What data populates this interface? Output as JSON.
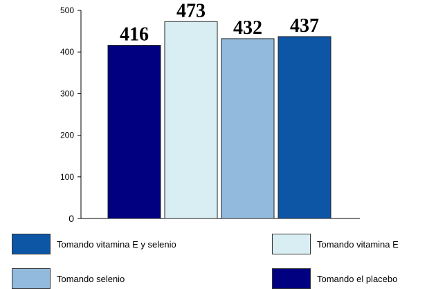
{
  "chart_data": {
    "type": "bar",
    "categories": [
      "Tomando el placebo",
      "Tomando vitamina E",
      "Tomando selenio",
      "Tomando vitamina E y selenio"
    ],
    "values": [
      416,
      473,
      432,
      437
    ],
    "data_labels": [
      "416",
      "473",
      "432",
      "437"
    ],
    "colors": [
      "#000080",
      "#d8eef2",
      "#92badc",
      "#0d55a5"
    ],
    "ylim": [
      0,
      500
    ],
    "yticks": [
      0,
      100,
      200,
      300,
      400,
      500
    ],
    "ytick_labels": [
      "0",
      "100",
      "200",
      "300",
      "400",
      "500"
    ],
    "title": "",
    "xlabel": "",
    "ylabel": "",
    "grid": false,
    "legend_position": "bottom"
  },
  "legend": [
    {
      "label": "Tomando vitamina E y selenio",
      "color": "#0d55a5"
    },
    {
      "label": "Tomando vitamina E",
      "color": "#d8eef2"
    },
    {
      "label": "Tomando selenio",
      "color": "#92badc"
    },
    {
      "label": "Tomando el placebo",
      "color": "#000080"
    }
  ]
}
